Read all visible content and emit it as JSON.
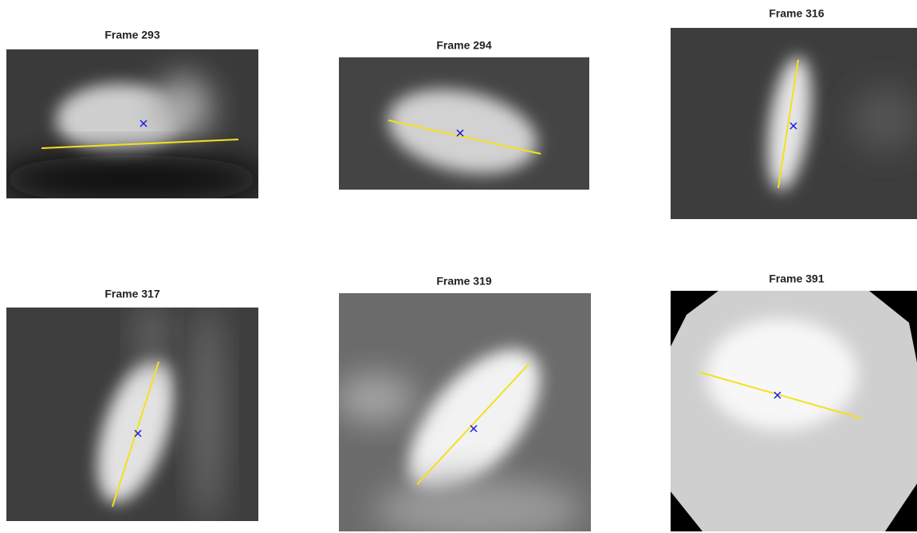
{
  "panels": [
    {
      "title": "Frame 293"
    },
    {
      "title": "Frame 294"
    },
    {
      "title": "Frame 316"
    },
    {
      "title": "Frame 317"
    },
    {
      "title": "Frame 319"
    },
    {
      "title": "Frame 391"
    }
  ]
}
